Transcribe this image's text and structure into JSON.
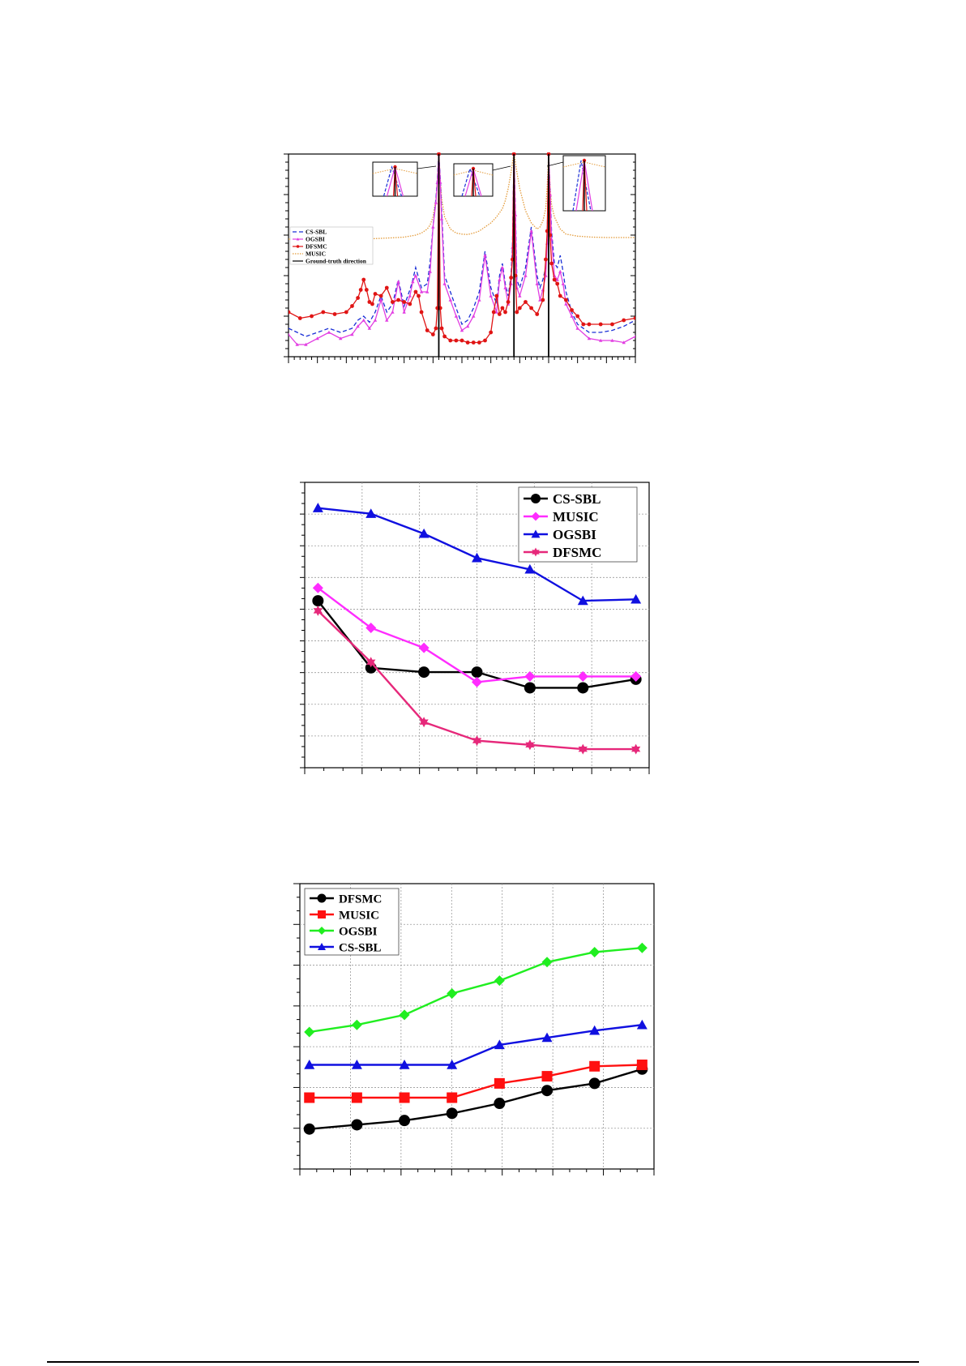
{
  "chart_data": [
    {
      "type": "line",
      "legend": {
        "placement": "left",
        "entries": [
          "CS-SBL",
          "OGSBI",
          "DFSMC",
          "MUSIC",
          "Ground-truth direction"
        ]
      },
      "ground_truth_x": [
        52,
        78,
        90
      ],
      "colors": {
        "CS-SBL": "#1a2fd6",
        "OGSBI": "#e23ee2",
        "DFSMC": "#e01414",
        "MUSIC": "#e39b3a",
        "Ground-truth direction": "#000000"
      },
      "xlim": [
        0,
        120
      ],
      "ylim": [
        0,
        100
      ],
      "series": [
        {
          "name": "MUSIC",
          "style": "dotted",
          "x": [
            0,
            10,
            20,
            30,
            35,
            40,
            44,
            46,
            48,
            49,
            50,
            51,
            51.5,
            52,
            52.5,
            53,
            54,
            56,
            58,
            60,
            62,
            64,
            66,
            68,
            70,
            72,
            74,
            75,
            76,
            77,
            77.5,
            78,
            78.5,
            79,
            80,
            82,
            84,
            86,
            87,
            88,
            89,
            89.5,
            90,
            90.5,
            91,
            92,
            94,
            96,
            100,
            105,
            110,
            115,
            120
          ],
          "y": [
            58,
            58,
            58,
            58.3,
            58.6,
            59,
            60,
            61,
            63,
            65,
            69,
            78,
            88,
            100,
            88,
            78,
            69,
            63,
            61,
            60.5,
            60.3,
            61,
            62,
            64,
            66,
            69,
            73,
            77,
            83,
            91,
            96,
            100,
            96,
            91,
            83,
            72,
            66,
            63,
            64,
            67,
            73,
            84,
            100,
            84,
            75,
            69,
            63,
            60.5,
            59.5,
            59,
            58.8,
            58.8,
            58.8
          ]
        },
        {
          "name": "CS-SBL",
          "style": "dashed",
          "x": [
            0,
            3,
            6,
            10,
            14,
            18,
            22,
            24,
            26,
            28,
            30,
            32,
            34,
            36,
            38,
            40,
            42,
            43,
            44,
            46,
            48,
            49,
            50,
            51,
            51.5,
            52,
            52.5,
            53,
            54,
            56,
            58,
            60,
            62,
            64,
            66,
            68,
            70,
            72,
            73,
            74,
            75,
            76,
            77,
            77.5,
            78,
            78.5,
            79,
            80,
            82,
            84,
            86,
            87,
            88,
            89,
            89.5,
            90,
            90.5,
            91,
            92,
            93,
            94,
            95,
            96,
            98,
            100,
            104,
            108,
            112,
            116,
            120
          ],
          "y": [
            14,
            12,
            10,
            12,
            14,
            12,
            14,
            18,
            20,
            17,
            22,
            30,
            22,
            26,
            38,
            25,
            33,
            38,
            44,
            34,
            36,
            47,
            64,
            78,
            88,
            100,
            88,
            72,
            40,
            32,
            24,
            16,
            18,
            24,
            32,
            52,
            34,
            26,
            40,
            46,
            36,
            30,
            40,
            56,
            100,
            72,
            38,
            34,
            44,
            64,
            40,
            34,
            38,
            44,
            58,
            100,
            82,
            62,
            46,
            44,
            50,
            42,
            32,
            22,
            16,
            12,
            12,
            13,
            15,
            18
          ]
        },
        {
          "name": "OGSBI",
          "style": "solid-triangle",
          "x": [
            0,
            3,
            6,
            10,
            14,
            18,
            22,
            24,
            26,
            28,
            30,
            32,
            34,
            36,
            38,
            40,
            42,
            43,
            44,
            46,
            48,
            49,
            50,
            51,
            51.5,
            52,
            52.5,
            53,
            54,
            56,
            58,
            60,
            62,
            64,
            66,
            68,
            70,
            72,
            73,
            74,
            75,
            76,
            77,
            77.5,
            78,
            78.5,
            79,
            80,
            82,
            84,
            86,
            87,
            88,
            89,
            89.5,
            90,
            90.5,
            91,
            92,
            93,
            94,
            95,
            96,
            98,
            100,
            104,
            108,
            112,
            116,
            120
          ],
          "y": [
            11,
            6,
            6,
            9,
            12,
            9,
            11,
            15,
            18,
            14,
            18,
            28,
            18,
            22,
            37,
            22,
            30,
            37,
            40,
            32,
            32,
            42,
            64,
            76,
            86,
            100,
            86,
            68,
            36,
            28,
            20,
            13,
            15,
            20,
            28,
            50,
            30,
            22,
            38,
            44,
            34,
            26,
            36,
            54,
            100,
            70,
            34,
            30,
            40,
            62,
            36,
            28,
            33,
            40,
            56,
            100,
            80,
            58,
            40,
            38,
            42,
            36,
            26,
            20,
            14,
            9,
            8,
            8,
            7,
            10
          ]
        },
        {
          "name": "DFSMC",
          "style": "solid-dot",
          "x": [
            0,
            4,
            8,
            12,
            16,
            20,
            22,
            24,
            25,
            26,
            27,
            28,
            29,
            30,
            32,
            34,
            36,
            38,
            40,
            42,
            44,
            45,
            46,
            48,
            50,
            51,
            51.5,
            52,
            52.5,
            53,
            54,
            56,
            58,
            60,
            62,
            64,
            66,
            68,
            70,
            71,
            72,
            73,
            74,
            75,
            76,
            77,
            77.5,
            78,
            78.5,
            79,
            80,
            82,
            84,
            86,
            88,
            89,
            89.5,
            90,
            90.5,
            91,
            92,
            93,
            94,
            96,
            98,
            100,
            102,
            104,
            108,
            112,
            116,
            120
          ],
          "y": [
            22,
            19,
            20,
            22,
            21,
            22,
            25,
            29,
            33,
            38,
            33,
            27,
            26,
            31,
            30,
            34,
            27,
            28,
            27,
            26,
            32,
            30,
            22,
            13,
            11,
            14,
            24,
            100,
            24,
            14,
            10,
            8,
            8,
            8,
            7,
            7,
            7,
            8,
            12,
            22,
            30,
            21,
            24,
            22,
            27,
            39,
            48,
            100,
            40,
            22,
            24,
            27,
            24,
            21,
            28,
            48,
            62,
            100,
            60,
            46,
            38,
            36,
            30,
            28,
            23,
            20,
            16,
            16,
            16,
            16,
            18,
            19
          ]
        }
      ]
    },
    {
      "type": "line",
      "legend": {
        "placement": "top-right",
        "entries": [
          "CS-SBL",
          "MUSIC",
          "OGSBI",
          "DFSMC"
        ]
      },
      "colors": {
        "CS-SBL": "#000000",
        "MUSIC": "#ff2cff",
        "OGSBI": "#1010e0",
        "DFSMC": "#e6287a"
      },
      "x": [
        1,
        2,
        3,
        4,
        5,
        6,
        7
      ],
      "xlim": [
        0.75,
        7.25
      ],
      "ylim": [
        0,
        100
      ],
      "series": [
        {
          "name": "CS-SBL",
          "values": [
            58.5,
            35,
            33.5,
            33.5,
            28,
            28,
            31
          ]
        },
        {
          "name": "MUSIC",
          "values": [
            63,
            49,
            42,
            30,
            32,
            32,
            32
          ]
        },
        {
          "name": "OGSBI",
          "values": [
            91,
            89,
            82,
            73.5,
            69.5,
            58.5,
            59
          ]
        },
        {
          "name": "DFSMC",
          "values": [
            55,
            37,
            16,
            9.5,
            8,
            6.5,
            6.5
          ]
        }
      ]
    },
    {
      "type": "line",
      "legend": {
        "placement": "top-left",
        "entries": [
          "DFSMC",
          "MUSIC",
          "OGSBI",
          "CS-SBL"
        ]
      },
      "colors": {
        "DFSMC": "#000000",
        "MUSIC": "#ff1010",
        "OGSBI": "#20ee20",
        "CS-SBL": "#1010e0"
      },
      "x": [
        1,
        2,
        3,
        4,
        5,
        6,
        7,
        8
      ],
      "xlim": [
        0.8,
        8.25
      ],
      "ylim": [
        0,
        100
      ],
      "series": [
        {
          "name": "DFSMC",
          "values": [
            14,
            15.5,
            17,
            19.5,
            23,
            27.5,
            30,
            35
          ]
        },
        {
          "name": "MUSIC",
          "values": [
            25,
            25,
            25,
            25,
            30,
            32.5,
            36,
            36.5
          ]
        },
        {
          "name": "OGSBI",
          "values": [
            48,
            50.5,
            54,
            61.5,
            66,
            72.5,
            76,
            77.5
          ]
        },
        {
          "name": "CS-SBL",
          "values": [
            36.5,
            36.5,
            36.5,
            36.5,
            43.5,
            46,
            48.5,
            50.5
          ]
        }
      ]
    }
  ]
}
